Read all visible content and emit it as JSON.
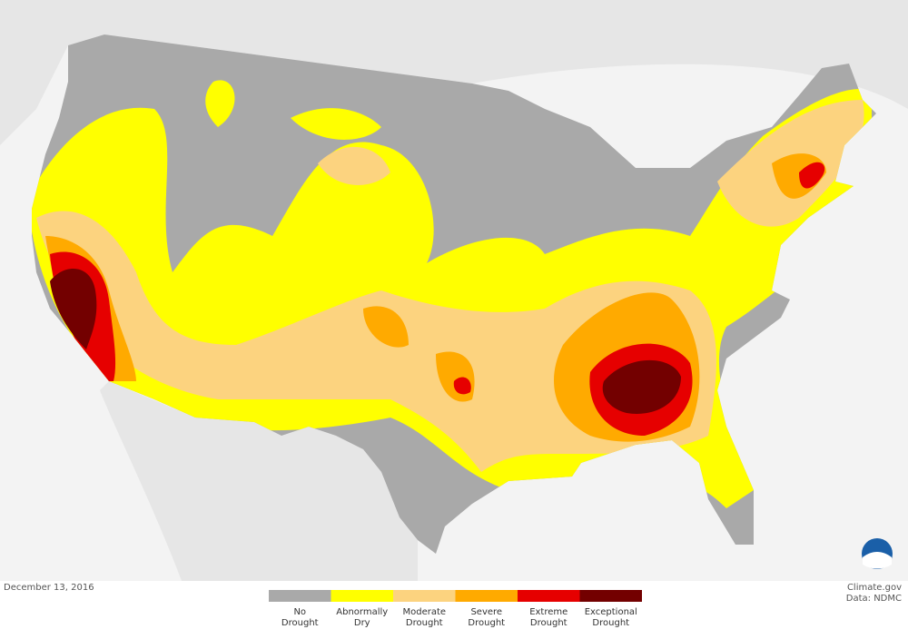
{
  "date": "December 13, 2016",
  "credit": [
    "Climate.gov",
    "Data: NDMC"
  ],
  "legend": [
    {
      "lines": [
        "No",
        "Drought"
      ],
      "color": "#a9a9a9"
    },
    {
      "lines": [
        "Abnormally",
        "Dry"
      ],
      "color": "#ffff00"
    },
    {
      "lines": [
        "Moderate",
        "Drought"
      ],
      "color": "#fcd37f"
    },
    {
      "lines": [
        "Severe",
        "Drought"
      ],
      "color": "#ffaa00"
    },
    {
      "lines": [
        "Extreme",
        "Drought"
      ],
      "color": "#e60000"
    },
    {
      "lines": [
        "Exceptional",
        "Drought"
      ],
      "color": "#730000"
    }
  ]
}
